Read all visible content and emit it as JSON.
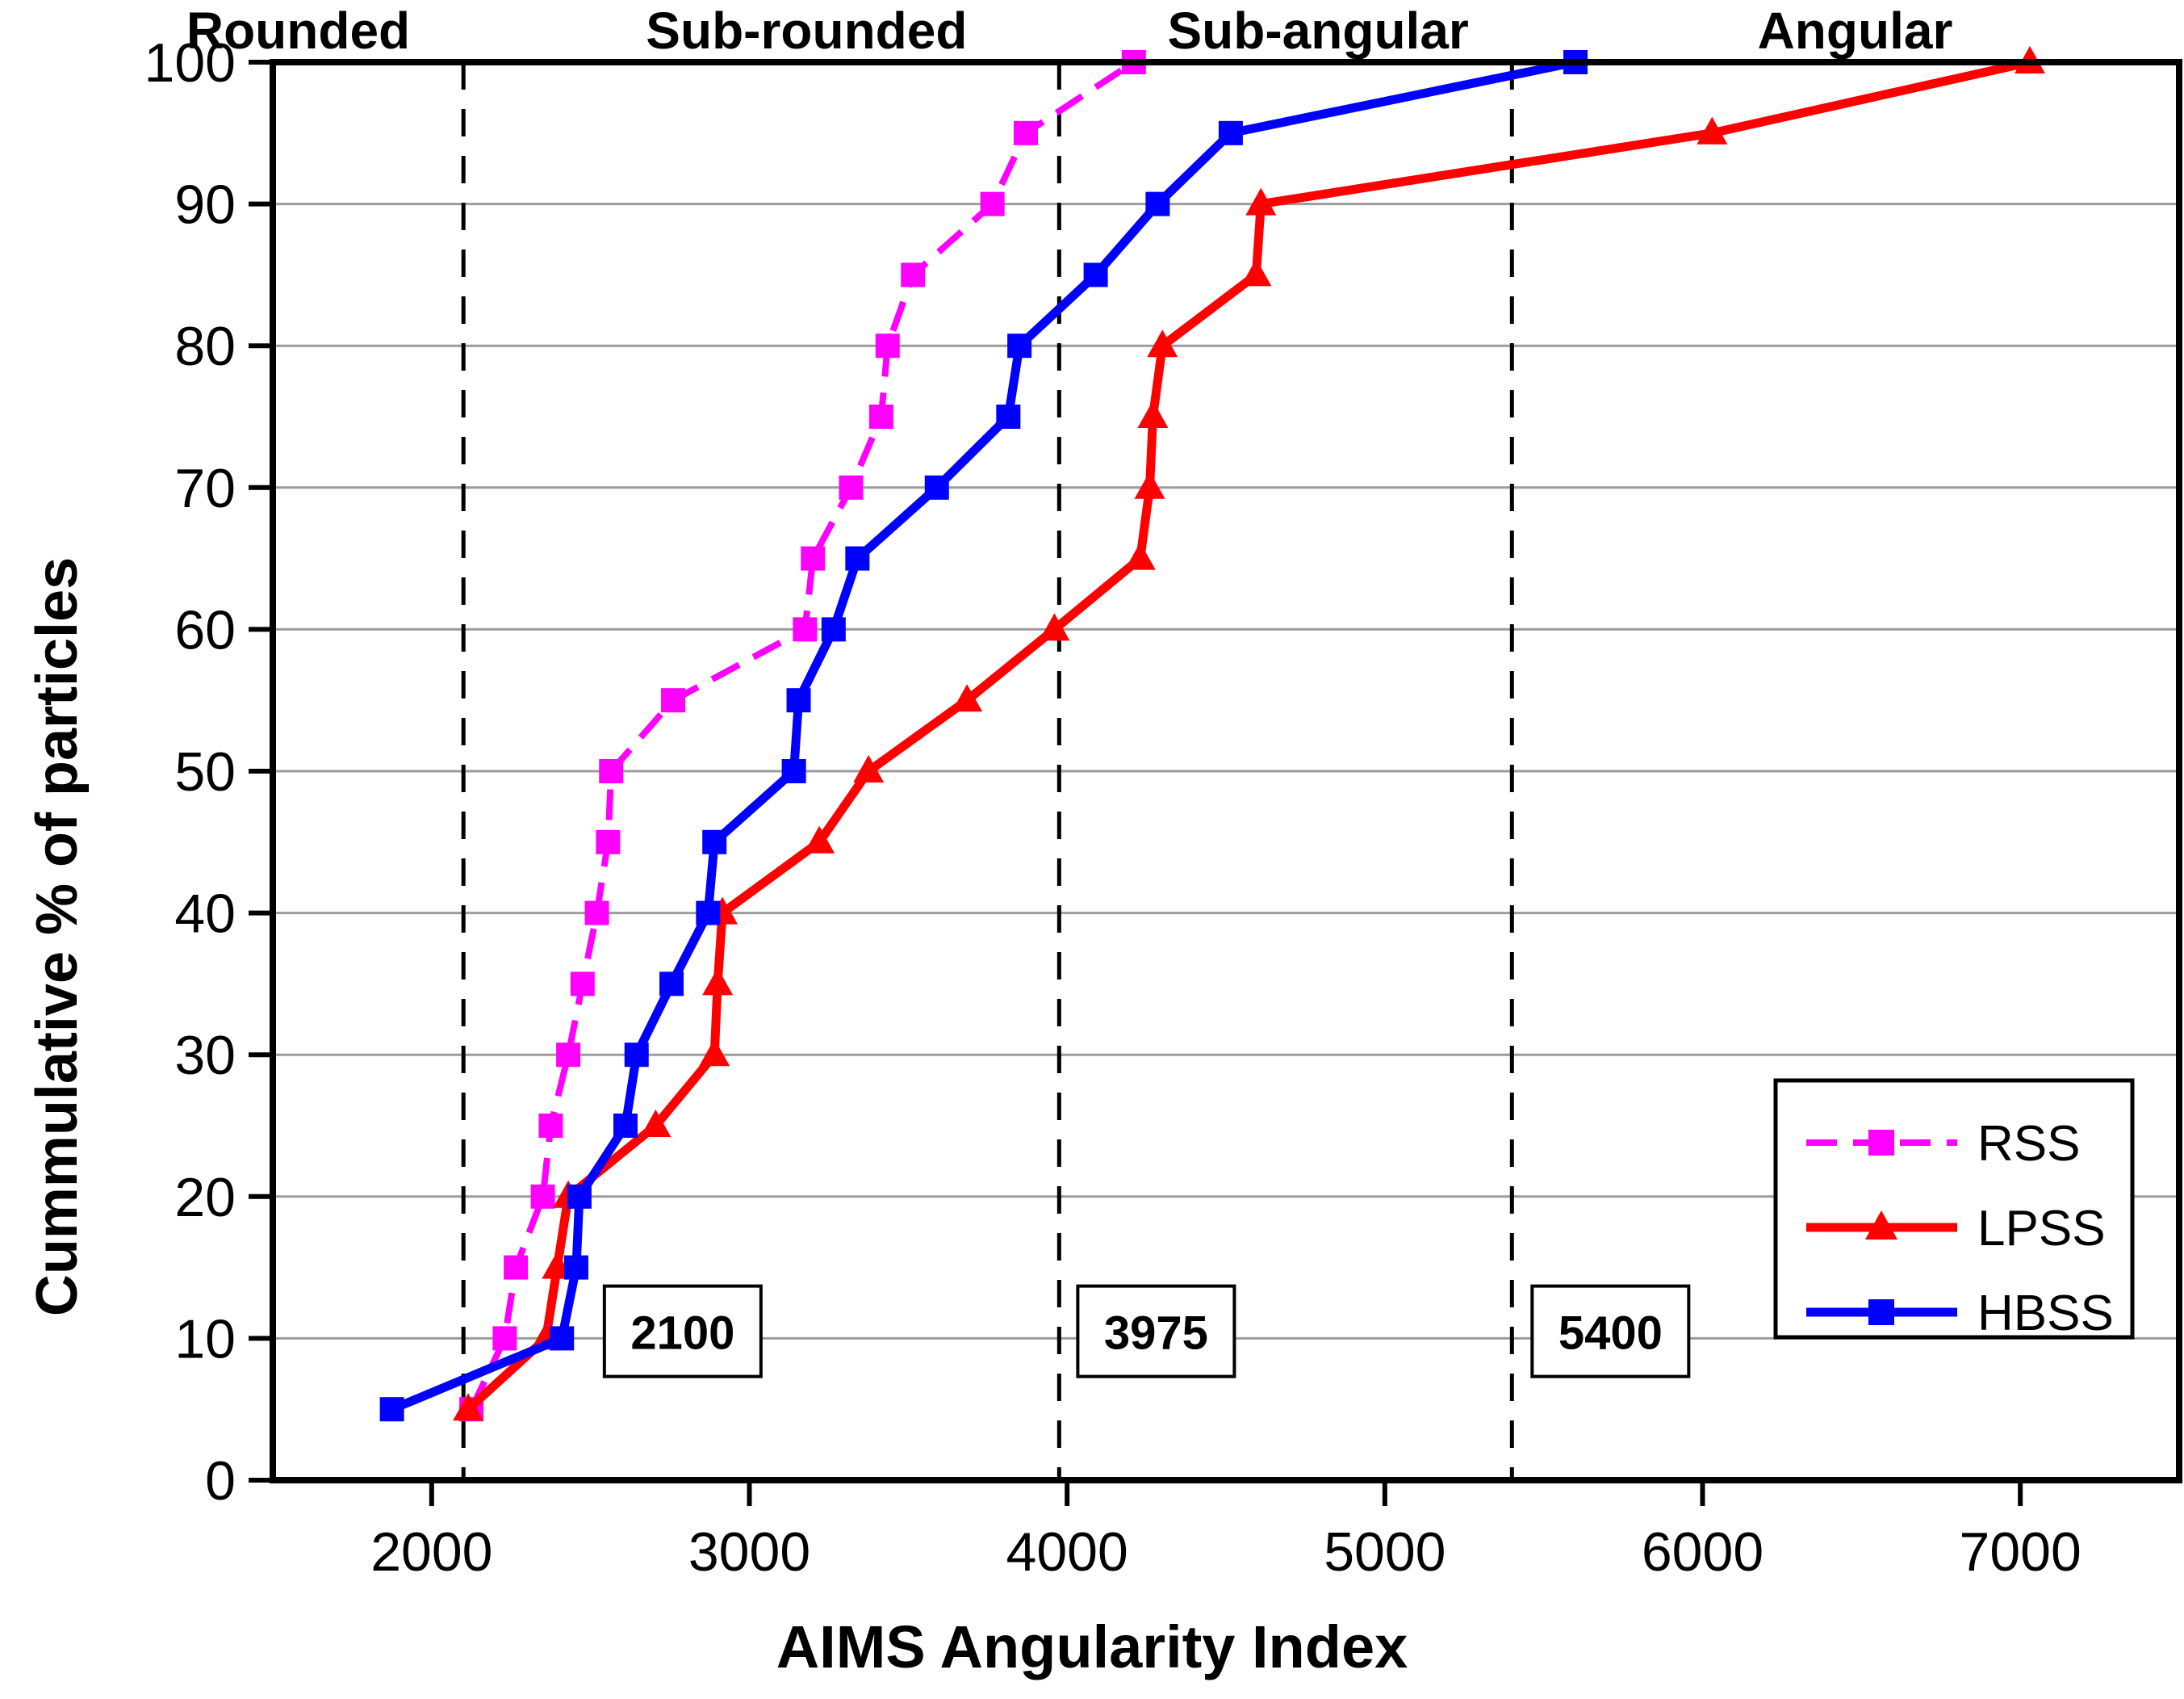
{
  "chart_data": {
    "type": "line",
    "title": "",
    "xlabel": "AIMS Angularity Index",
    "ylabel": "Cummulative % of particles",
    "xlim": [
      1500,
      7500
    ],
    "ylim": [
      0,
      100
    ],
    "x_ticks": [
      2000,
      3000,
      4000,
      5000,
      6000,
      7000
    ],
    "y_ticks": [
      0,
      10,
      20,
      30,
      40,
      50,
      60,
      70,
      80,
      90,
      100
    ],
    "grid": "horizontal",
    "grid_color": "#9C9C9C",
    "reference_line_color": "#000000",
    "legend_position": "right-middle",
    "series": [
      {
        "name": "RSS",
        "color": "#FF00FF",
        "line_style": "dashed",
        "marker": "square",
        "points": [
          [
            2125,
            5
          ],
          [
            2230,
            10
          ],
          [
            2265,
            15
          ],
          [
            2350,
            20
          ],
          [
            2375,
            25
          ],
          [
            2430,
            30
          ],
          [
            2475,
            35
          ],
          [
            2520,
            40
          ],
          [
            2555,
            45
          ],
          [
            2565,
            50
          ],
          [
            2760,
            55
          ],
          [
            3175,
            60
          ],
          [
            3200,
            65
          ],
          [
            3320,
            70
          ],
          [
            3415,
            75
          ],
          [
            3435,
            80
          ],
          [
            3515,
            85
          ],
          [
            3765,
            90
          ],
          [
            3870,
            95
          ],
          [
            4210,
            100
          ]
        ]
      },
      {
        "name": "LPSS",
        "color": "#FF0000",
        "line_style": "solid",
        "marker": "triangle",
        "points": [
          [
            2115,
            5
          ],
          [
            2360,
            10
          ],
          [
            2395,
            15
          ],
          [
            2430,
            20
          ],
          [
            2705,
            25
          ],
          [
            2890,
            30
          ],
          [
            2900,
            35
          ],
          [
            2915,
            40
          ],
          [
            3220,
            45
          ],
          [
            3375,
            50
          ],
          [
            3685,
            55
          ],
          [
            3960,
            60
          ],
          [
            4230,
            65
          ],
          [
            4260,
            70
          ],
          [
            4270,
            75
          ],
          [
            4300,
            80
          ],
          [
            4595,
            85
          ],
          [
            4610,
            90
          ],
          [
            6030,
            95
          ],
          [
            7030,
            100
          ]
        ]
      },
      {
        "name": "HBSS",
        "color": "#0000FF",
        "line_style": "solid",
        "marker": "square",
        "points": [
          [
            1875,
            5
          ],
          [
            2410,
            10
          ],
          [
            2455,
            15
          ],
          [
            2465,
            20
          ],
          [
            2610,
            25
          ],
          [
            2645,
            30
          ],
          [
            2755,
            35
          ],
          [
            2870,
            40
          ],
          [
            2890,
            45
          ],
          [
            3140,
            50
          ],
          [
            3155,
            55
          ],
          [
            3265,
            60
          ],
          [
            3340,
            65
          ],
          [
            3590,
            70
          ],
          [
            3815,
            75
          ],
          [
            3850,
            80
          ],
          [
            4090,
            85
          ],
          [
            4285,
            90
          ],
          [
            4515,
            95
          ],
          [
            5600,
            100
          ]
        ]
      }
    ],
    "reference_lines": [
      {
        "value": 2100,
        "label": "2100",
        "label_center_x": 2790,
        "label_center_y_pct": 10.5
      },
      {
        "value": 3975,
        "label": "3975",
        "label_center_x": 4280,
        "label_center_y_pct": 10.5
      },
      {
        "value": 5400,
        "label": "5400",
        "label_center_x": 5710,
        "label_center_y_pct": 10.5
      }
    ],
    "regions": [
      {
        "label": "Rounded",
        "label_center_x": 1580
      },
      {
        "label": "Sub-rounded",
        "label_center_x": 3180
      },
      {
        "label": "Sub-angular",
        "label_center_x": 4790
      },
      {
        "label": "Angular",
        "label_center_x": 6480
      }
    ],
    "legend": {
      "entries": [
        "RSS",
        "LPSS",
        "HBSS"
      ]
    }
  }
}
